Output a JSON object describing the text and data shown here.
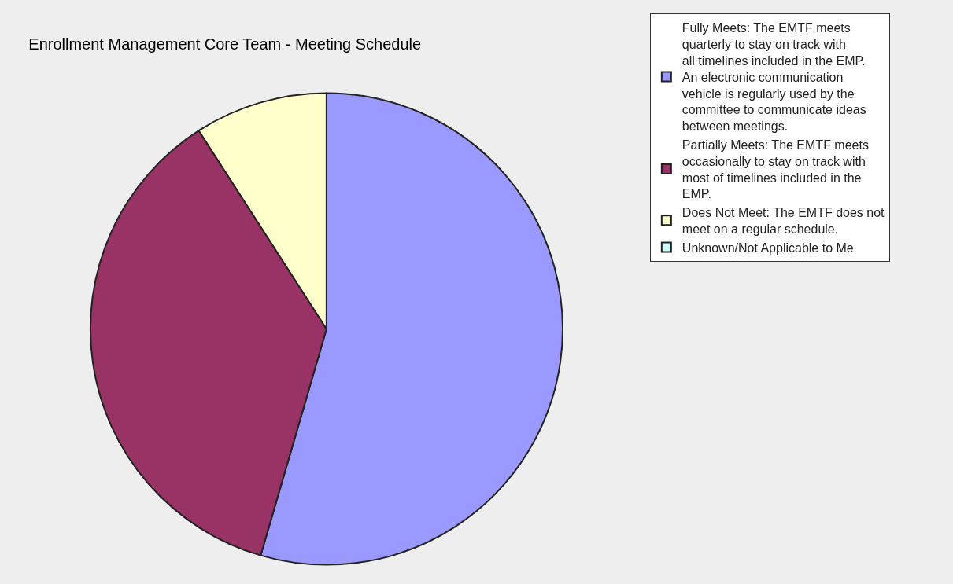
{
  "chart_data": {
    "type": "pie",
    "title": "Enrollment Management Core Team - Meeting Schedule",
    "categories": [
      "Fully Meets: The EMTF meets quarterly to stay on track with all timelines included in the EMP. An electronic communication vehicle is regularly used by the committee to communicate ideas between meetings.",
      "Partially Meets: The EMTF meets occasionally to stay on track with most of timelines included in the EMP.",
      "Does Not Meet: The EMTF does not meet on a regular schedule.",
      "Unknown/Not Applicable to Me"
    ],
    "values": [
      54.5,
      36.4,
      9.1,
      0
    ],
    "colors": [
      "#9999ff",
      "#993366",
      "#ffffcc",
      "#ccffff"
    ],
    "legend": "right"
  }
}
